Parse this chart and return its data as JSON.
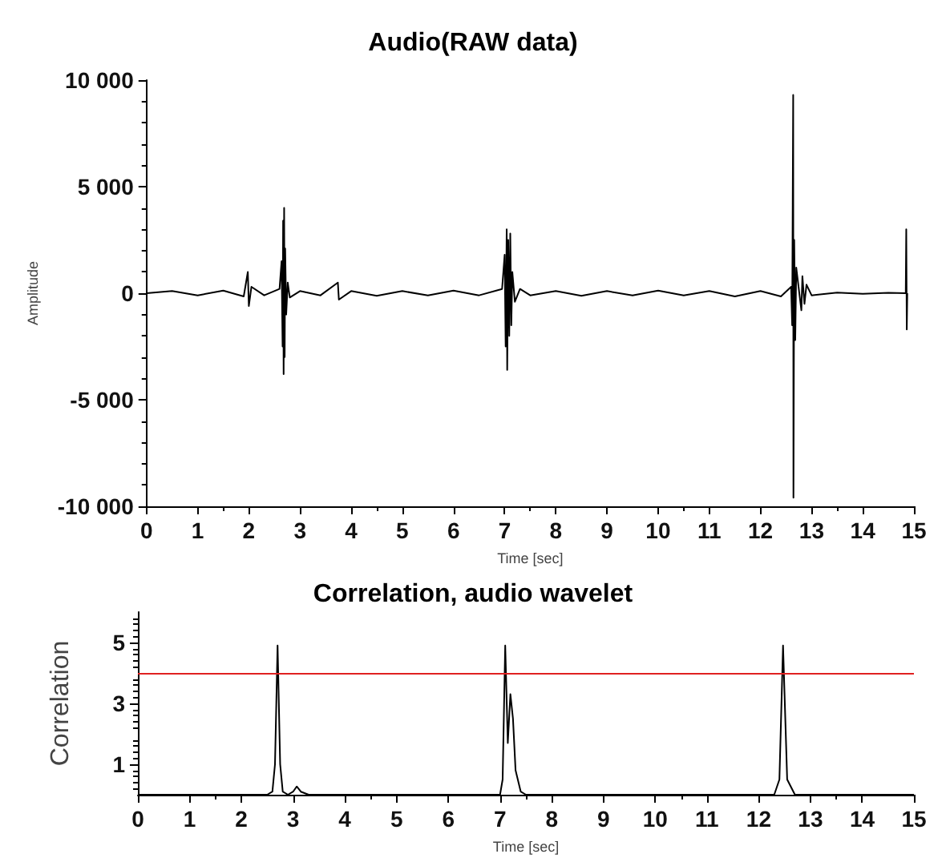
{
  "chart_data": [
    {
      "type": "line",
      "title": "Audio(RAW data)",
      "xlabel": "Time [sec]",
      "ylabel": "Amplitude",
      "xlim": [
        0,
        15
      ],
      "xticks": [
        0,
        1,
        2,
        3,
        4,
        5,
        6,
        7,
        8,
        9,
        10,
        11,
        12,
        13,
        14,
        15
      ],
      "ylim": [
        -10000,
        10000
      ],
      "yticks": [
        {
          "value": -10000,
          "label": "-10 000"
        },
        {
          "value": -5000,
          "label": "-5 000"
        },
        0,
        {
          "value": 5000,
          "label": "5 000"
        },
        {
          "value": 10000,
          "label": "10 000"
        }
      ],
      "grid": false,
      "marker": "none",
      "line_style": "solid",
      "series": [
        {
          "color": "#000000",
          "x": [
            0,
            0.5,
            1,
            1.5,
            1.9,
            1.98,
            2.0,
            2.05,
            2.3,
            2.6,
            2.64,
            2.66,
            2.67,
            2.68,
            2.69,
            2.7,
            2.71,
            2.73,
            2.76,
            2.8,
            3.0,
            3.4,
            3.74,
            3.76,
            4,
            4.5,
            5,
            5.5,
            6,
            6.5,
            6.95,
            7.0,
            7.02,
            7.04,
            7.05,
            7.07,
            7.09,
            7.11,
            7.13,
            7.15,
            7.2,
            7.3,
            7.5,
            8,
            8.5,
            9,
            9.5,
            10,
            10.5,
            11,
            11.5,
            12,
            12.4,
            12.6,
            12.62,
            12.64,
            12.645,
            12.66,
            12.68,
            12.7,
            12.8,
            12.82,
            12.86,
            12.9,
            13,
            13.5,
            14,
            14.5,
            14.84,
            14.85,
            14.86,
            14.87
          ],
          "values": [
            0,
            100,
            -100,
            120,
            -150,
            1000,
            -600,
            300,
            -100,
            200,
            1500,
            -2500,
            3400,
            -3800,
            4000,
            -3000,
            2100,
            -1000,
            500,
            -200,
            100,
            -100,
            500,
            -300,
            100,
            -120,
            100,
            -100,
            120,
            -100,
            200,
            1800,
            -2500,
            3000,
            -3600,
            2500,
            -2000,
            2800,
            -1500,
            1000,
            -400,
            200,
            -100,
            100,
            -120,
            100,
            -100,
            120,
            -100,
            100,
            -150,
            100,
            -150,
            300,
            -1500,
            9300,
            -9600,
            2500,
            -2200,
            1200,
            -800,
            800,
            -500,
            400,
            -100,
            30,
            -30,
            20,
            0,
            3000,
            -1700,
            0
          ]
        }
      ]
    },
    {
      "type": "line",
      "title": "Correlation, audio wavelet",
      "xlabel": "Time [sec]",
      "ylabel": "Correlation",
      "xlim": [
        0,
        15
      ],
      "xticks": [
        0,
        1,
        2,
        3,
        4,
        5,
        6,
        7,
        8,
        9,
        10,
        11,
        12,
        13,
        14,
        15
      ],
      "ylim": [
        0,
        6
      ],
      "yticks": [
        1,
        3,
        5
      ],
      "grid": false,
      "marker": "none",
      "line_style": "solid",
      "ref_lines": [
        {
          "axis": "y",
          "value": 4,
          "color": "#e02020"
        }
      ],
      "series": [
        {
          "color": "#000000",
          "x": [
            0,
            2.5,
            2.6,
            2.65,
            2.7,
            2.75,
            2.8,
            2.9,
            3.0,
            3.07,
            3.15,
            3.3,
            7.0,
            7.05,
            7.1,
            7.15,
            7.2,
            7.25,
            7.3,
            7.4,
            7.5,
            12.3,
            12.4,
            12.47,
            12.55,
            12.7,
            15
          ],
          "values": [
            0,
            0,
            0.1,
            1,
            4.9,
            1,
            0.1,
            0,
            0.1,
            0.27,
            0.1,
            0,
            0,
            0.5,
            4.9,
            1.7,
            3.3,
            2.5,
            0.8,
            0.1,
            0,
            0,
            0.5,
            4.9,
            0.5,
            0,
            0
          ]
        }
      ]
    }
  ]
}
